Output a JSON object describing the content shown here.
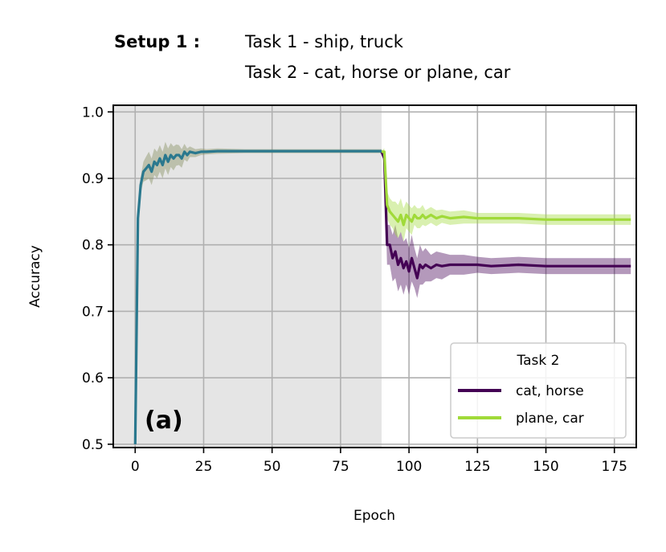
{
  "header": {
    "setup_label": "Setup 1 :",
    "task1": "Task 1 - ship, truck",
    "task2": "Task 2 - cat, horse or plane, car"
  },
  "colors": {
    "shade": "#e5e5e5",
    "grid": "#b0b0b0",
    "cat_horse": "#440154",
    "plane_car": "#a0da39",
    "task1": "#2a788e",
    "task1_band": "#7f8a58"
  },
  "chart_data": {
    "type": "line",
    "title": "",
    "xlabel": "Epoch",
    "ylabel": "Accuracy",
    "xlim": [
      -8,
      183
    ],
    "ylim": [
      0.495,
      1.01
    ],
    "xticks": [
      0,
      25,
      50,
      75,
      100,
      125,
      150,
      175
    ],
    "yticks": [
      0.5,
      0.6,
      0.7,
      0.8,
      0.9,
      1.0
    ],
    "xtick_labels": [
      "0",
      "25",
      "50",
      "75",
      "100",
      "125",
      "150",
      "175"
    ],
    "ytick_labels": [
      "0.5",
      "0.6",
      "0.7",
      "0.8",
      "0.9",
      "1.0"
    ],
    "grid": true,
    "shaded_region": [
      -8,
      90
    ],
    "panel_label": "(a)",
    "legend": {
      "title": "Task 2",
      "location": "lower right"
    },
    "series": [
      {
        "name": "cat, horse",
        "color": "#440154",
        "x": [
          90,
          91,
          92,
          93,
          94,
          95,
          96,
          97,
          98,
          99,
          100,
          101,
          102,
          103,
          104,
          105,
          106,
          108,
          110,
          112,
          115,
          120,
          125,
          130,
          140,
          150,
          160,
          170,
          181
        ],
        "y": [
          0.94,
          0.93,
          0.8,
          0.8,
          0.78,
          0.79,
          0.77,
          0.78,
          0.765,
          0.775,
          0.76,
          0.78,
          0.765,
          0.75,
          0.77,
          0.765,
          0.77,
          0.765,
          0.77,
          0.768,
          0.77,
          0.77,
          0.77,
          0.768,
          0.77,
          0.768,
          0.768,
          0.768,
          0.768
        ],
        "band": [
          0.002,
          0.01,
          0.03,
          0.03,
          0.035,
          0.04,
          0.04,
          0.04,
          0.04,
          0.035,
          0.035,
          0.035,
          0.03,
          0.03,
          0.03,
          0.025,
          0.025,
          0.02,
          0.02,
          0.02,
          0.015,
          0.015,
          0.012,
          0.012,
          0.012,
          0.012,
          0.012,
          0.012,
          0.012
        ]
      },
      {
        "name": "plane, car",
        "color": "#a0da39",
        "x": [
          90,
          91,
          92,
          93,
          94,
          95,
          96,
          97,
          98,
          99,
          100,
          101,
          102,
          103,
          104,
          105,
          106,
          108,
          110,
          112,
          115,
          120,
          125,
          130,
          140,
          150,
          160,
          170,
          181
        ],
        "y": [
          0.94,
          0.94,
          0.86,
          0.85,
          0.845,
          0.84,
          0.835,
          0.845,
          0.83,
          0.845,
          0.84,
          0.835,
          0.845,
          0.84,
          0.84,
          0.845,
          0.84,
          0.845,
          0.84,
          0.843,
          0.84,
          0.842,
          0.84,
          0.84,
          0.84,
          0.838,
          0.838,
          0.838,
          0.838
        ],
        "band": [
          0.002,
          0.005,
          0.02,
          0.02,
          0.02,
          0.025,
          0.025,
          0.025,
          0.025,
          0.02,
          0.02,
          0.02,
          0.015,
          0.015,
          0.015,
          0.015,
          0.012,
          0.012,
          0.012,
          0.01,
          0.01,
          0.01,
          0.008,
          0.008,
          0.008,
          0.008,
          0.008,
          0.008,
          0.008
        ]
      },
      {
        "color": "#2a788e",
        "x": [
          0,
          1,
          2,
          3,
          4,
          5,
          6,
          7,
          8,
          9,
          10,
          11,
          12,
          13,
          14,
          15,
          16,
          17,
          18,
          19,
          20,
          22,
          24,
          26,
          30,
          40,
          50,
          60,
          70,
          80,
          90
        ],
        "y": [
          0.5,
          0.84,
          0.89,
          0.91,
          0.915,
          0.92,
          0.91,
          0.925,
          0.92,
          0.93,
          0.92,
          0.935,
          0.925,
          0.935,
          0.93,
          0.935,
          0.935,
          0.93,
          0.94,
          0.935,
          0.94,
          0.938,
          0.94,
          0.94,
          0.941,
          0.941,
          0.941,
          0.941,
          0.941,
          0.941,
          0.941
        ],
        "band": [
          0,
          0.01,
          0.012,
          0.015,
          0.018,
          0.02,
          0.02,
          0.02,
          0.02,
          0.02,
          0.02,
          0.02,
          0.02,
          0.018,
          0.018,
          0.016,
          0.015,
          0.014,
          0.012,
          0.01,
          0.008,
          0.006,
          0.005,
          0.004,
          0.004,
          0.003,
          0.003,
          0.003,
          0.003,
          0.003,
          0.003
        ]
      }
    ]
  }
}
